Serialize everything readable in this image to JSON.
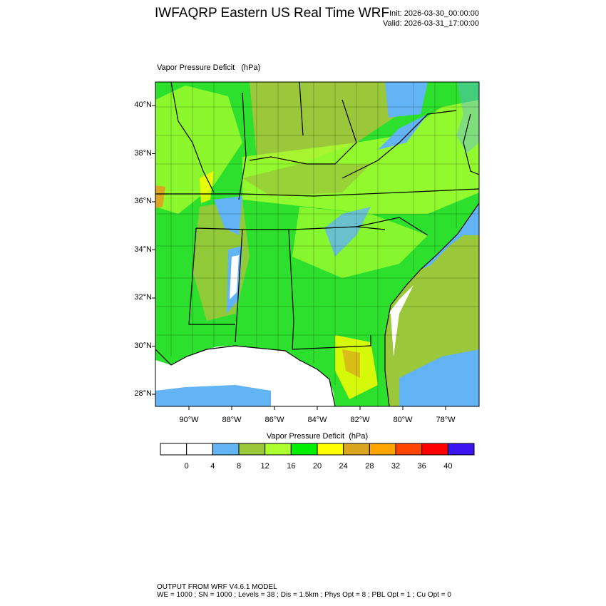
{
  "header": {
    "title": "IWFAQRP Eastern US Real Time WRF",
    "init": "Init: 2026-03-30_00:00:00",
    "valid": "Valid: 2026-03-31_17:00:00"
  },
  "map": {
    "label": "Vapor Pressure Deficit   (hPa)",
    "lat_labels": [
      "28°N",
      "30°N",
      "32°N",
      "34°N",
      "36°N",
      "38°N",
      "40°N"
    ],
    "lon_labels": [
      "90°W",
      "88°W",
      "86°W",
      "84°W",
      "82°W",
      "80°W",
      "78°W"
    ]
  },
  "colorbar": {
    "title": "Vapor Pressure Deficit  (hPa)",
    "colors": [
      "#ffffff",
      "#ffffff",
      "#63b4f5",
      "#9bc83a",
      "#adff2f",
      "#00f000",
      "#ffff00",
      "#daa520",
      "#ffa500",
      "#ff4500",
      "#ff0000",
      "#3c14f0"
    ],
    "labels": [
      0,
      4,
      8,
      12,
      16,
      20,
      24,
      28,
      32,
      36,
      40
    ]
  },
  "footer": [
    "OUTPUT FROM WRF V4.6.1 MODEL",
    "WE = 1000 ; SN = 1000 ; Levels = 38 ; Dis = 1.5km ; Phys Opt = 8 ; PBL Opt = 1 ; Cu Opt = 0"
  ]
}
